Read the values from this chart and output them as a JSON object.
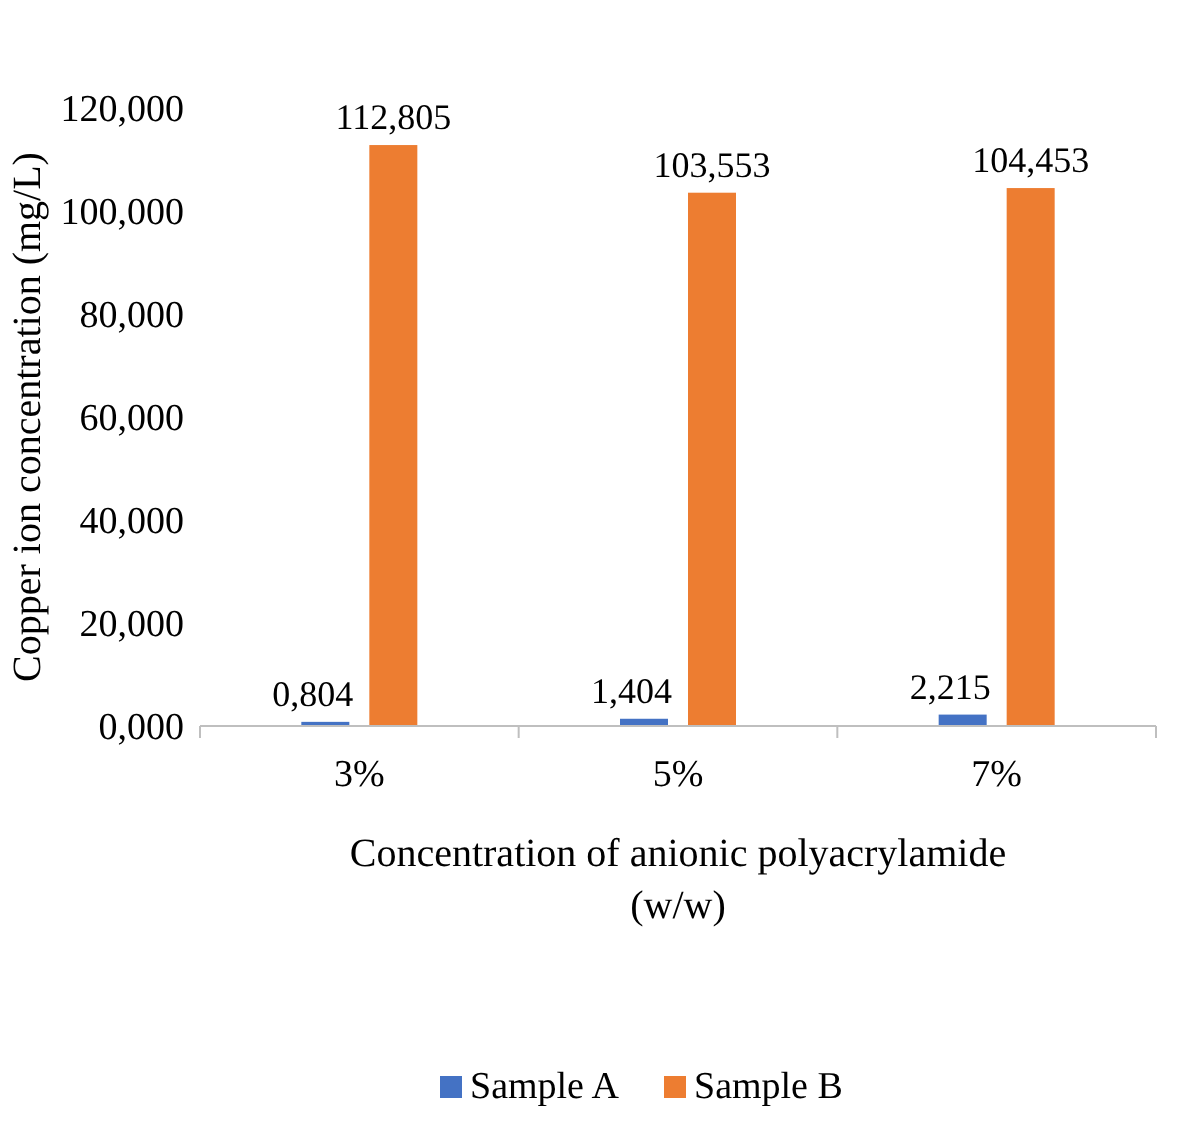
{
  "chart_data": {
    "type": "bar",
    "xlabel": "Concentration of anionic polyacrylamide\n(w/w)",
    "ylabel": "Copper ion concentration (mg/L)",
    "categories": [
      "3%",
      "5%",
      "7%"
    ],
    "series": [
      {
        "name": "Sample A",
        "color": "#4472c4",
        "values": [
          0.804,
          1.404,
          2.215
        ],
        "value_labels": [
          "0,804",
          "1,404",
          "2,215"
        ]
      },
      {
        "name": "Sample B",
        "color": "#ed7d31",
        "values": [
          112.805,
          103.553,
          104.453
        ],
        "value_labels": [
          "112,805",
          "103,553",
          "104,453"
        ]
      }
    ],
    "ylim": [
      0,
      120
    ],
    "yticks": [
      {
        "value": 0,
        "label": "0,000"
      },
      {
        "value": 20,
        "label": "20,000"
      },
      {
        "value": 40,
        "label": "40,000"
      },
      {
        "value": 60,
        "label": "60,000"
      },
      {
        "value": 80,
        "label": "80,000"
      },
      {
        "value": 100,
        "label": "100,000"
      },
      {
        "value": 120,
        "label": "120,000"
      }
    ],
    "legend": "bottom",
    "grid": false
  }
}
